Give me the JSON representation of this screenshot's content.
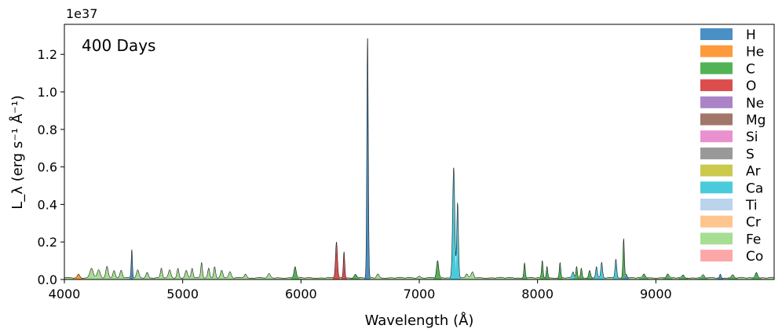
{
  "chart_data": {
    "type": "area",
    "annotation": "400 Days",
    "xlabel": "Wavelength (Å)",
    "ylabel": "L_λ (erg s⁻¹ Å⁻¹)",
    "y_offset_label": "1e37",
    "xlim": [
      4000,
      10000
    ],
    "ylim": [
      0,
      1.36
    ],
    "y_scale": "×1e37",
    "xticks": [
      4000,
      5000,
      6000,
      7000,
      8000,
      9000
    ],
    "yticks": [
      0.0,
      0.2,
      0.4,
      0.6,
      0.8,
      1.0,
      1.2
    ],
    "grid": false,
    "legend_position": "top-right",
    "legend": [
      {
        "name": "H",
        "color": "#4a90c4"
      },
      {
        "name": "He",
        "color": "#fd9a3c"
      },
      {
        "name": "C",
        "color": "#52b356"
      },
      {
        "name": "O",
        "color": "#dc4e4e"
      },
      {
        "name": "Ne",
        "color": "#ab84c8"
      },
      {
        "name": "Mg",
        "color": "#a27669"
      },
      {
        "name": "Si",
        "color": "#e991cf"
      },
      {
        "name": "S",
        "color": "#999999"
      },
      {
        "name": "Ar",
        "color": "#cbc94c"
      },
      {
        "name": "Ca",
        "color": "#49cbdc"
      },
      {
        "name": "Ti",
        "color": "#bcd3ec"
      },
      {
        "name": "Cr",
        "color": "#fec58f"
      },
      {
        "name": "Fe",
        "color": "#a6de93"
      },
      {
        "name": "Co",
        "color": "#fda8a8"
      }
    ],
    "continuum": 0.012,
    "lines": [
      {
        "element": "He",
        "x": 4120,
        "y": 0.02,
        "w": 10
      },
      {
        "element": "Fe",
        "x": 4230,
        "y": 0.05,
        "w": 14
      },
      {
        "element": "Fe",
        "x": 4290,
        "y": 0.04,
        "w": 12
      },
      {
        "element": "Fe",
        "x": 4360,
        "y": 0.06,
        "w": 10
      },
      {
        "element": "Fe",
        "x": 4420,
        "y": 0.04,
        "w": 10
      },
      {
        "element": "Fe",
        "x": 4480,
        "y": 0.04,
        "w": 10
      },
      {
        "element": "H",
        "x": 4570,
        "y": 0.15,
        "w": 5
      },
      {
        "element": "Fe",
        "x": 4620,
        "y": 0.04,
        "w": 10
      },
      {
        "element": "Fe",
        "x": 4700,
        "y": 0.03,
        "w": 10
      },
      {
        "element": "Fe",
        "x": 4820,
        "y": 0.05,
        "w": 8
      },
      {
        "element": "Fe",
        "x": 4890,
        "y": 0.04,
        "w": 10
      },
      {
        "element": "Fe",
        "x": 4960,
        "y": 0.05,
        "w": 8
      },
      {
        "element": "Fe",
        "x": 5030,
        "y": 0.04,
        "w": 10
      },
      {
        "element": "Fe",
        "x": 5080,
        "y": 0.05,
        "w": 8
      },
      {
        "element": "Fe",
        "x": 5160,
        "y": 0.08,
        "w": 7
      },
      {
        "element": "Fe",
        "x": 5220,
        "y": 0.05,
        "w": 8
      },
      {
        "element": "Fe",
        "x": 5270,
        "y": 0.06,
        "w": 8
      },
      {
        "element": "Fe",
        "x": 5330,
        "y": 0.04,
        "w": 10
      },
      {
        "element": "Fe",
        "x": 5400,
        "y": 0.03,
        "w": 10
      },
      {
        "element": "Fe",
        "x": 5530,
        "y": 0.02,
        "w": 10
      },
      {
        "element": "Fe",
        "x": 5730,
        "y": 0.02,
        "w": 10
      },
      {
        "element": "C",
        "x": 5950,
        "y": 0.06,
        "w": 9
      },
      {
        "element": "O",
        "x": 6300,
        "y": 0.19,
        "w": 8
      },
      {
        "element": "O",
        "x": 6364,
        "y": 0.14,
        "w": 6
      },
      {
        "element": "C",
        "x": 6460,
        "y": 0.02,
        "w": 10
      },
      {
        "element": "H",
        "x": 6563,
        "y": 1.29,
        "w": 6
      },
      {
        "element": "Fe",
        "x": 6650,
        "y": 0.02,
        "w": 10
      },
      {
        "element": "Fe",
        "x": 7000,
        "y": 0.01,
        "w": 10
      },
      {
        "element": "C",
        "x": 7155,
        "y": 0.09,
        "w": 9
      },
      {
        "element": "Ca",
        "x": 7291,
        "y": 0.59,
        "w": 9
      },
      {
        "element": "Ca",
        "x": 7324,
        "y": 0.4,
        "w": 7
      },
      {
        "element": "Fe",
        "x": 7400,
        "y": 0.02,
        "w": 10
      },
      {
        "element": "Fe",
        "x": 7450,
        "y": 0.03,
        "w": 10
      },
      {
        "element": "C",
        "x": 7890,
        "y": 0.08,
        "w": 6
      },
      {
        "element": "C",
        "x": 8040,
        "y": 0.09,
        "w": 6
      },
      {
        "element": "C",
        "x": 8080,
        "y": 0.06,
        "w": 6
      },
      {
        "element": "C",
        "x": 8190,
        "y": 0.08,
        "w": 6
      },
      {
        "element": "Ca",
        "x": 8300,
        "y": 0.03,
        "w": 8
      },
      {
        "element": "C",
        "x": 8330,
        "y": 0.06,
        "w": 6
      },
      {
        "element": "C",
        "x": 8370,
        "y": 0.05,
        "w": 6
      },
      {
        "element": "C",
        "x": 8440,
        "y": 0.04,
        "w": 8
      },
      {
        "element": "Ca",
        "x": 8498,
        "y": 0.06,
        "w": 7
      },
      {
        "element": "Ca",
        "x": 8542,
        "y": 0.08,
        "w": 7
      },
      {
        "element": "Ca",
        "x": 8662,
        "y": 0.1,
        "w": 7
      },
      {
        "element": "C",
        "x": 8728,
        "y": 0.21,
        "w": 6
      },
      {
        "element": "H",
        "x": 8750,
        "y": 0.02,
        "w": 6
      },
      {
        "element": "C",
        "x": 8900,
        "y": 0.02,
        "w": 10
      },
      {
        "element": "C",
        "x": 9100,
        "y": 0.02,
        "w": 10
      },
      {
        "element": "C",
        "x": 9230,
        "y": 0.015,
        "w": 10
      },
      {
        "element": "C",
        "x": 9400,
        "y": 0.015,
        "w": 10
      },
      {
        "element": "H",
        "x": 9545,
        "y": 0.02,
        "w": 6
      },
      {
        "element": "C",
        "x": 9650,
        "y": 0.015,
        "w": 10
      },
      {
        "element": "C",
        "x": 9850,
        "y": 0.03,
        "w": 10
      }
    ]
  }
}
